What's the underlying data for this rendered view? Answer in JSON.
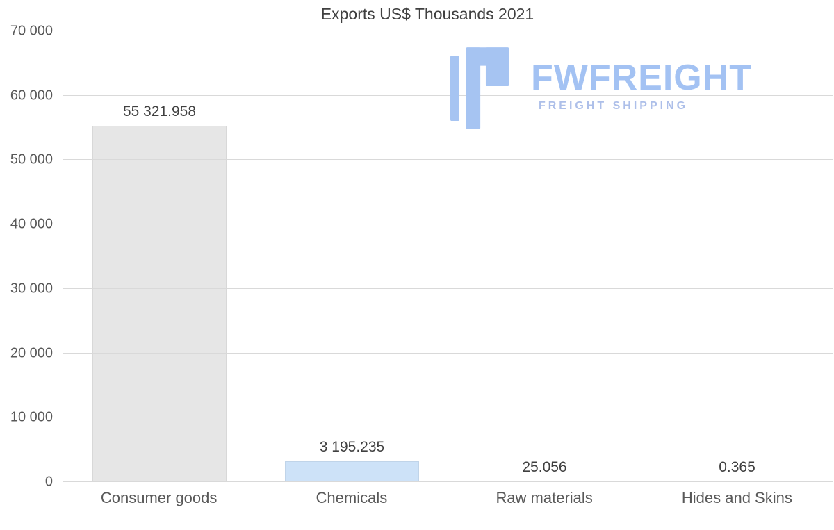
{
  "chart_data": {
    "type": "bar",
    "title": "Exports US$ Thousands 2021",
    "categories": [
      "Consumer goods",
      "Chemicals",
      "Raw materials",
      "Hides and Skins"
    ],
    "values": [
      55321.958,
      3195.235,
      25.056,
      0.365
    ],
    "value_labels": [
      "55 321.958",
      "3 195.235",
      "25.056",
      "0.365"
    ],
    "bar_colors": [
      "#e6e6e6",
      "#cde2f8",
      "#cde2f8",
      "#cde2f8"
    ],
    "xlabel": "",
    "ylabel": "",
    "ylim": [
      0,
      70000
    ],
    "ytick_labels": [
      "0",
      "10 000",
      "20 000",
      "30 000",
      "40 000",
      "50 000",
      "60 000",
      "70 000"
    ],
    "grid": true,
    "legend": "none"
  },
  "logo": {
    "name": "FWFREIGHT",
    "subtitle": "FREIGHT SHIPPING",
    "icon_color": "#a6c4f2",
    "name_color": "#a3c2f3",
    "subtitle_color": "#adbfe9"
  }
}
